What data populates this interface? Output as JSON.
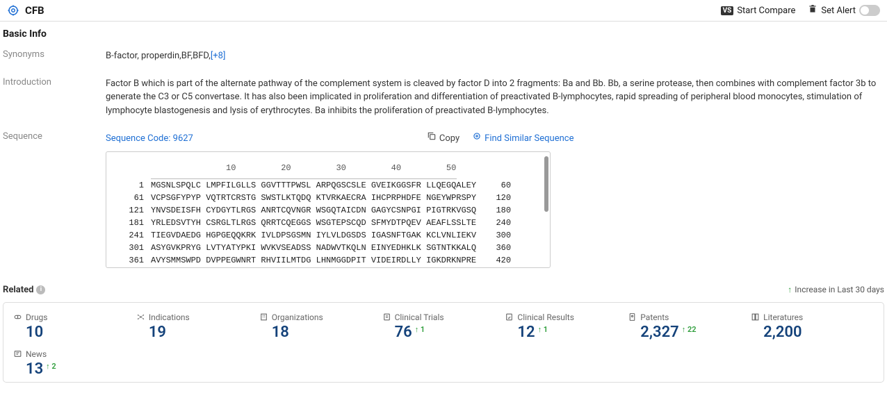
{
  "topbar": {
    "title": "CFB",
    "start_compare": "Start Compare",
    "set_alert": "Set Alert"
  },
  "basic_info": {
    "title": "Basic Info",
    "synonyms_label": "Synonyms",
    "synonyms_value": "B-factor, properdin,BF,BFD,",
    "synonyms_more": "[+8]",
    "introduction_label": "Introduction",
    "introduction_value": "Factor B which is part of the alternate pathway of the complement system is cleaved by factor D into 2 fragments: Ba and Bb. Bb, a serine protease, then combines with complement factor 3b to generate the C3 or C5 convertase. It has also been implicated in proliferation and differentiation of preactivated B-lymphocytes, rapid spreading of peripheral blood monocytes, stimulation of lymphocyte blastogenesis and lysis of erythrocytes. Ba inhibits the proliferation of preactivated B-lymphocytes.",
    "sequence_label": "Sequence",
    "sequence_code": "Sequence Code: 9627",
    "copy": "Copy",
    "find_similar": "Find Similar Sequence",
    "ruler_marks": [
      10,
      20,
      30,
      40,
      50
    ],
    "sequence_lines": [
      {
        "start": 1,
        "text": "MGSNLSPQLC LMPFILGLLS GGVTTTPWSL ARPQGSCSLE GVEIKGGSFR LLQEGQALEY",
        "end": 60
      },
      {
        "start": 61,
        "text": "VCPSGFYPYP VQTRTCRSTG SWSTLKTQDQ KTVRKAECRA IHCPRPHDFE NGEYWPRSPY",
        "end": 120
      },
      {
        "start": 121,
        "text": "YNVSDEISFH CYDGYTLRGS ANRTCQVNGR WSGQTAICDN GAGYCSNPGI PIGTRKVGSQ",
        "end": 180
      },
      {
        "start": 181,
        "text": "YRLEDSVTYH CSRGLTLRGS QRRTCQEGGS WSGTEPSCQD SFMYDTPQEV AEAFLSSLTE",
        "end": 240
      },
      {
        "start": 241,
        "text": "TIEGVDAEDG HGPGEQQKRK IVLDPSGSMN IYLVLDGSDS IGASNFTGAK KCLVNLIEKV",
        "end": 300
      },
      {
        "start": 301,
        "text": "ASYGVKPRYG LVTYATYPKI WVKVSEADSS NADWVTKQLN EINYEDHKLK SGTNTKKALQ",
        "end": 360
      },
      {
        "start": 361,
        "text": "AVYSMMSWPD DVPPEGWNRT RHVIILMTDG LHNMGGDPIT VIDEIRDLLY IGKDRKNPRE",
        "end": 420
      }
    ]
  },
  "related": {
    "title": "Related",
    "legend": "Increase in Last 30 days",
    "stats": [
      {
        "label": "Drugs",
        "value": "10",
        "delta": null
      },
      {
        "label": "Indications",
        "value": "19",
        "delta": null
      },
      {
        "label": "Organizations",
        "value": "18",
        "delta": null
      },
      {
        "label": "Clinical Trials",
        "value": "76",
        "delta": "1"
      },
      {
        "label": "Clinical Results",
        "value": "12",
        "delta": "1"
      },
      {
        "label": "Patents",
        "value": "2,327",
        "delta": "22"
      },
      {
        "label": "Literatures",
        "value": "2,200",
        "delta": null
      },
      {
        "label": "News",
        "value": "13",
        "delta": "2"
      }
    ]
  }
}
